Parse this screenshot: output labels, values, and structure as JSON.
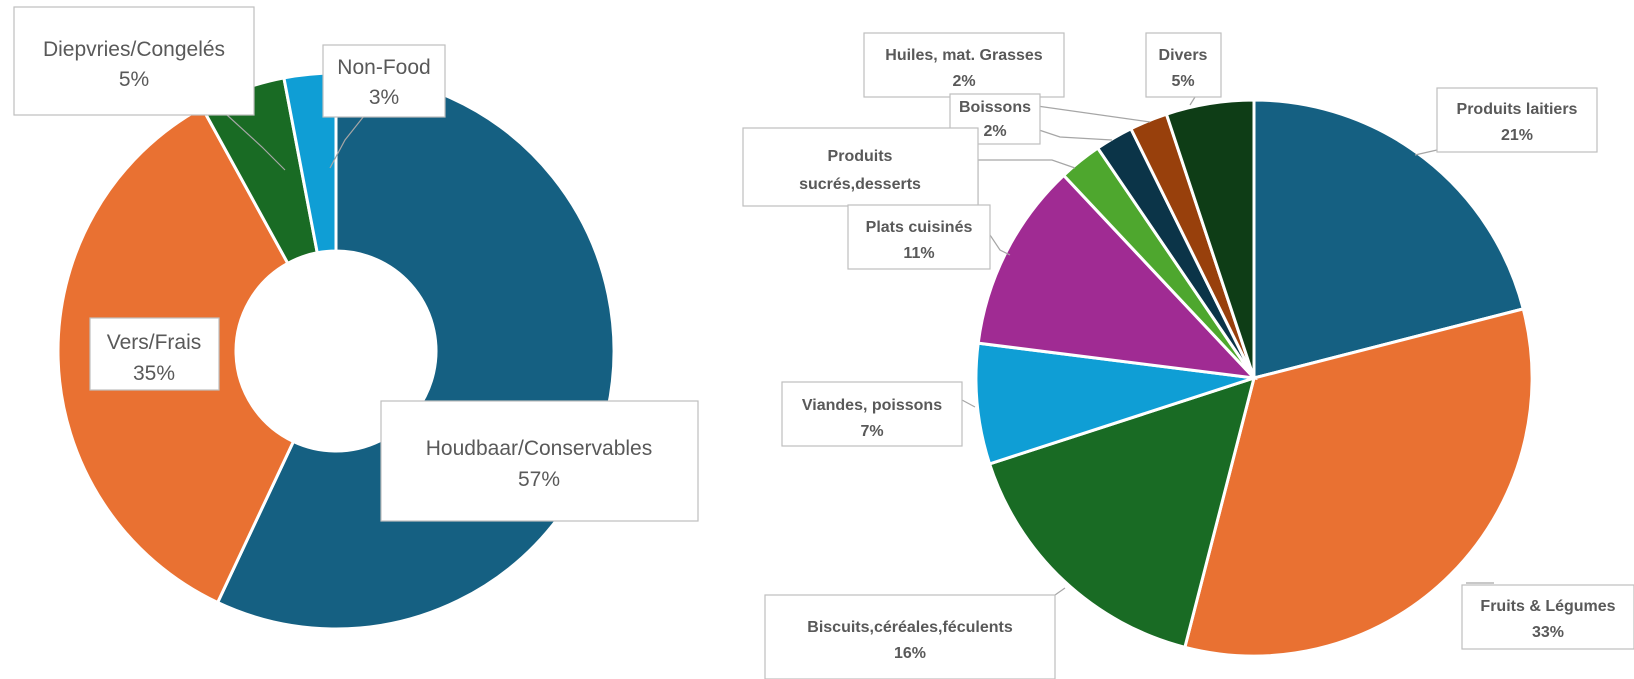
{
  "chart_data": [
    {
      "type": "pie",
      "variant": "doughnut",
      "series": [
        {
          "label": "Houdbaar/Conservables",
          "pct": "57%",
          "value": 57,
          "color": "#156082"
        },
        {
          "label": "Vers/Frais",
          "pct": "35%",
          "value": 35,
          "color": "#E97132"
        },
        {
          "label": "Diepvries/Congelés",
          "pct": "5%",
          "value": 5,
          "color": "#196B24"
        },
        {
          "label": "Non-Food",
          "pct": "3%",
          "value": 3,
          "color": "#0F9ED5"
        }
      ],
      "title": "",
      "legend": "none"
    },
    {
      "type": "pie",
      "series": [
        {
          "label": "Produits laitiers",
          "pct": "21%",
          "value": 21,
          "color": "#156082"
        },
        {
          "label": "Fruits & Légumes",
          "pct": "33%",
          "value": 33,
          "color": "#E97132"
        },
        {
          "label": "Biscuits,céréales,féculents",
          "pct": "16%",
          "value": 16,
          "color": "#196B24"
        },
        {
          "label": "Viandes, poissons",
          "pct": "7%",
          "value": 7,
          "color": "#0F9ED5"
        },
        {
          "label": "Plats cuisinés",
          "pct": "11%",
          "value": 11,
          "color": "#A02B93"
        },
        {
          "label": "Produits sucrés,desserts",
          "pct": "",
          "value": 2.5,
          "color": "#4EA72E"
        },
        {
          "label": "Boissons",
          "pct": "2%",
          "value": 2.2,
          "color": "#0B3448"
        },
        {
          "label": "Huiles, mat. Grasses",
          "pct": "2%",
          "value": 2.2,
          "color": "#98400C"
        },
        {
          "label": "Divers",
          "pct": "5%",
          "value": 5.1,
          "color": "#0E3D16"
        }
      ],
      "title": "",
      "legend": "none"
    }
  ]
}
